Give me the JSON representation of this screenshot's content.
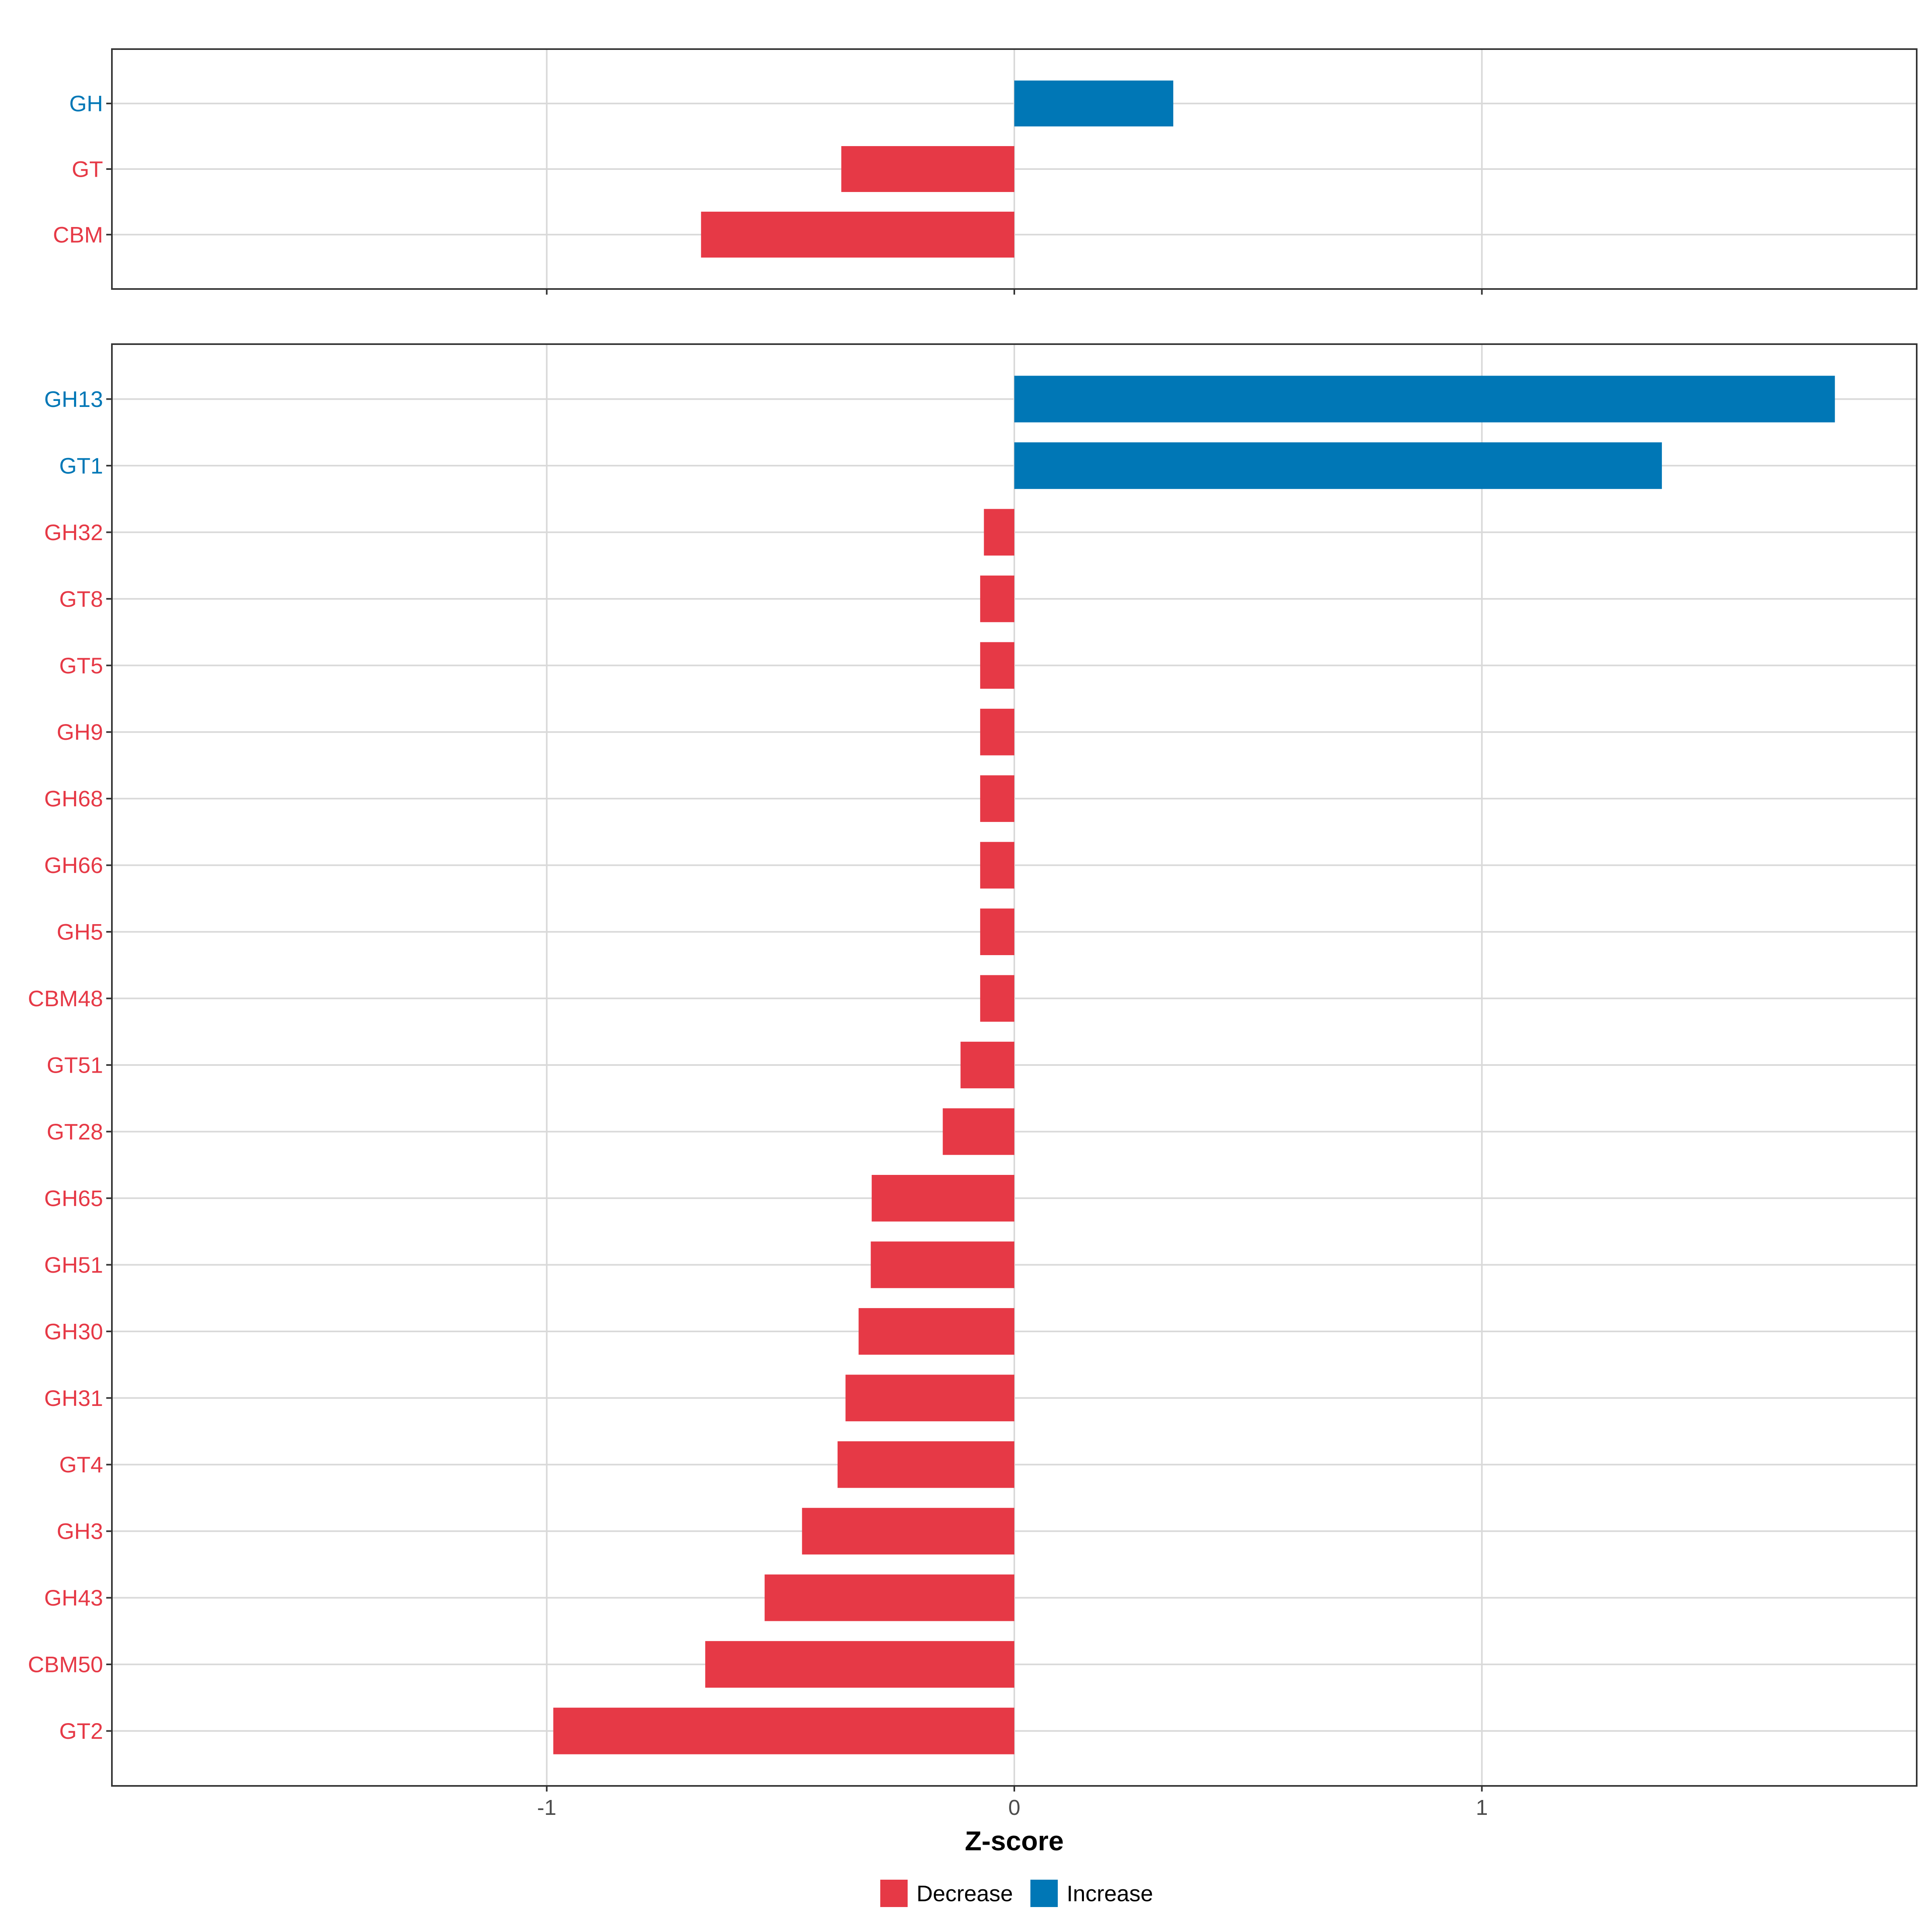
{
  "colors": {
    "decrease": "#E63946",
    "increase": "#0077B6",
    "grid": "#D9D9D9",
    "axis": "#333333"
  },
  "legend": {
    "position": "bottom",
    "items": [
      {
        "label": "Decrease",
        "color": "#E63946"
      },
      {
        "label": "Increase",
        "color": "#0077B6"
      }
    ]
  },
  "chart_data": [
    {
      "type": "bar",
      "orientation": "horizontal",
      "grid": true,
      "xlim": [
        -1.93,
        1.93
      ],
      "xticks": [
        -1,
        0,
        1
      ],
      "xtick_labels": [],
      "xlabel": "",
      "bars": [
        {
          "category": "GH",
          "value": 0.34,
          "group": "Increase"
        },
        {
          "category": "GT",
          "value": -0.37,
          "group": "Decrease"
        },
        {
          "category": "CBM",
          "value": -0.67,
          "group": "Decrease"
        }
      ]
    },
    {
      "type": "bar",
      "orientation": "horizontal",
      "grid": true,
      "xlim": [
        -1.93,
        1.93
      ],
      "xticks": [
        -1,
        0,
        1
      ],
      "xtick_labels": [
        "-1",
        "0",
        "1"
      ],
      "xlabel": "Z-score",
      "bars": [
        {
          "category": "GH13",
          "value": 1.755,
          "group": "Increase"
        },
        {
          "category": "GT1",
          "value": 1.385,
          "group": "Increase"
        },
        {
          "category": "GH32",
          "value": -0.065,
          "group": "Decrease"
        },
        {
          "category": "GT8",
          "value": -0.073,
          "group": "Decrease"
        },
        {
          "category": "GT5",
          "value": -0.073,
          "group": "Decrease"
        },
        {
          "category": "GH9",
          "value": -0.073,
          "group": "Decrease"
        },
        {
          "category": "GH68",
          "value": -0.073,
          "group": "Decrease"
        },
        {
          "category": "GH66",
          "value": -0.073,
          "group": "Decrease"
        },
        {
          "category": "GH5",
          "value": -0.073,
          "group": "Decrease"
        },
        {
          "category": "CBM48",
          "value": -0.073,
          "group": "Decrease"
        },
        {
          "category": "GT51",
          "value": -0.115,
          "group": "Decrease"
        },
        {
          "category": "GT28",
          "value": -0.153,
          "group": "Decrease"
        },
        {
          "category": "GH65",
          "value": -0.305,
          "group": "Decrease"
        },
        {
          "category": "GH51",
          "value": -0.307,
          "group": "Decrease"
        },
        {
          "category": "GH30",
          "value": -0.333,
          "group": "Decrease"
        },
        {
          "category": "GH31",
          "value": -0.361,
          "group": "Decrease"
        },
        {
          "category": "GT4",
          "value": -0.378,
          "group": "Decrease"
        },
        {
          "category": "GH3",
          "value": -0.454,
          "group": "Decrease"
        },
        {
          "category": "GH43",
          "value": -0.534,
          "group": "Decrease"
        },
        {
          "category": "CBM50",
          "value": -0.661,
          "group": "Decrease"
        },
        {
          "category": "GT2",
          "value": -0.986,
          "group": "Decrease"
        }
      ]
    }
  ]
}
